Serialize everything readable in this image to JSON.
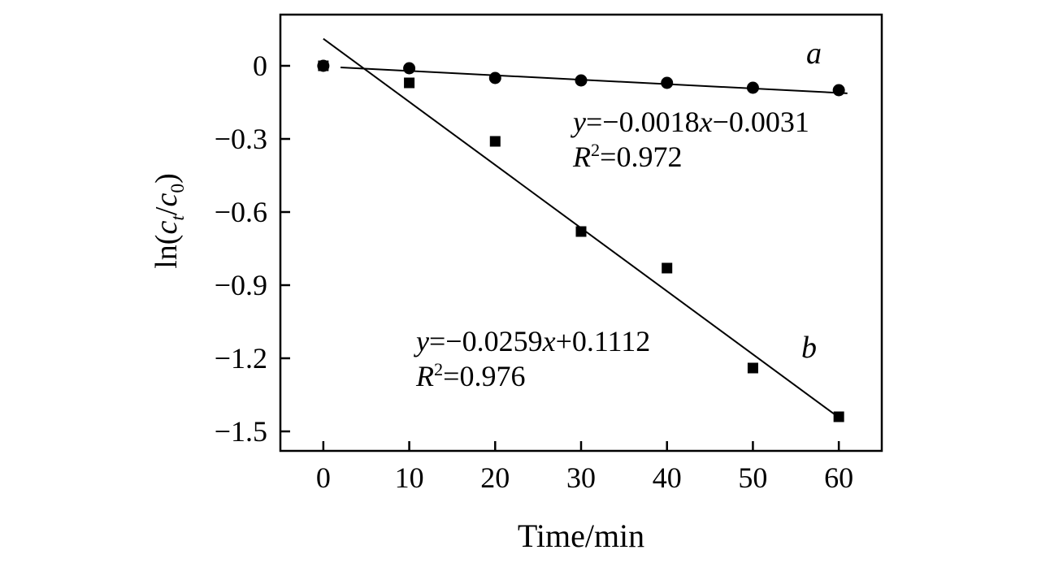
{
  "figure": {
    "background": "#ffffff",
    "ink": "#000000"
  },
  "chart_data": {
    "type": "scatter",
    "title": "",
    "xlabel": "Time/min",
    "ylabel": "ln(ct/c0)",
    "ylabel_parts": {
      "ln": "ln(",
      "c1": "c",
      "sub_t": "t",
      "slash": "/",
      "c2": "c",
      "sub_0": "0",
      "close": ")"
    },
    "xlim": [
      -5,
      65
    ],
    "ylim": [
      -1.58,
      0.21
    ],
    "xticks": [
      0,
      10,
      20,
      30,
      40,
      50,
      60
    ],
    "yticks": [
      0,
      -0.3,
      -0.6,
      -0.9,
      -1.2,
      -1.5
    ],
    "grid": false,
    "legend_position": "none",
    "series": [
      {
        "name": "a",
        "marker": "circle",
        "color": "#000000",
        "x": [
          0,
          10,
          20,
          30,
          40,
          50,
          60
        ],
        "y": [
          0.0,
          -0.01,
          -0.05,
          -0.06,
          -0.07,
          -0.09,
          -0.1
        ],
        "fit": {
          "slope": -0.0018,
          "intercept": -0.0031,
          "x_start": 2,
          "x_end": 61,
          "label": {
            "y_var": "y",
            "coef": "=−0.0018",
            "x_var": "x",
            "const": "−0.0031"
          },
          "r2": {
            "R": "R",
            "sup": "2",
            "val": "=0.972"
          }
        }
      },
      {
        "name": "b",
        "marker": "square",
        "color": "#000000",
        "x": [
          0,
          10,
          20,
          30,
          40,
          50,
          60
        ],
        "y": [
          0.0,
          -0.07,
          -0.31,
          -0.68,
          -0.83,
          -1.24,
          -1.44
        ],
        "fit": {
          "slope": -0.0259,
          "intercept": 0.1112,
          "x_start": 0,
          "x_end": 60.5,
          "label": {
            "y_var": "y",
            "coef": "=−0.0259",
            "x_var": "x",
            "const": "+0.1112"
          },
          "r2": {
            "R": "R",
            "sup": "2",
            "val": "=0.976"
          }
        }
      }
    ],
    "annotations": [
      {
        "text": "a"
      },
      {
        "text": "b"
      }
    ]
  }
}
